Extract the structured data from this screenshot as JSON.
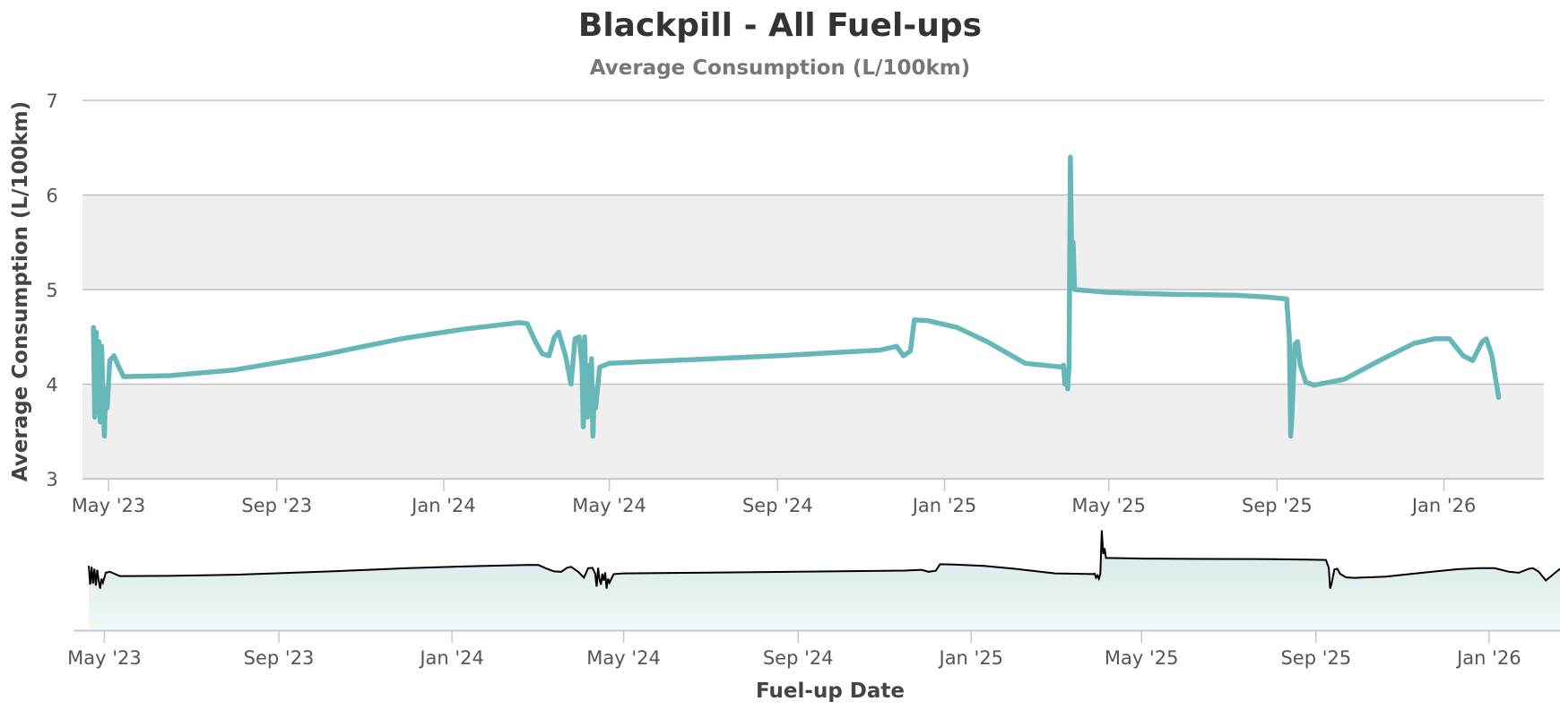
{
  "chart_data": {
    "type": "line",
    "title": "Blackpill - All Fuel-ups",
    "subtitle": "Average Consumption (L/100km)",
    "ylabel": "Average Consumption (L/100km)",
    "xlabel": "Fuel-up Date",
    "ylim": [
      3,
      7
    ],
    "yticks": [
      3,
      4,
      5,
      6,
      7
    ],
    "xlim": [
      "2023-04-12",
      "2026-03-15"
    ],
    "xticks": [
      {
        "date": "2023-05-01",
        "label": "May '23"
      },
      {
        "date": "2023-09-01",
        "label": "Sep '23"
      },
      {
        "date": "2024-01-01",
        "label": "Jan '24"
      },
      {
        "date": "2024-05-01",
        "label": "May '24"
      },
      {
        "date": "2024-09-01",
        "label": "Sep '24"
      },
      {
        "date": "2025-01-01",
        "label": "Jan '25"
      },
      {
        "date": "2025-05-01",
        "label": "May '25"
      },
      {
        "date": "2025-09-01",
        "label": "Sep '25"
      },
      {
        "date": "2026-01-01",
        "label": "Jan '26"
      }
    ],
    "plot_bands": [
      {
        "from": 3,
        "to": 4
      },
      {
        "from": 5,
        "to": 6
      }
    ],
    "grid": true,
    "legend": false,
    "colors": {
      "line": "#66b8b8",
      "band": "#efefef",
      "grid": "#c0c0c0",
      "navigator_line": "#000000",
      "navigator_fill_top": "#d3e6e6",
      "navigator_fill_bottom": "#f2f8f8",
      "navigator_axis": "#c0c8d8"
    },
    "series": [
      {
        "points": [
          [
            "2023-04-20",
            4.6
          ],
          [
            "2023-04-21",
            3.65
          ],
          [
            "2023-04-22",
            4.55
          ],
          [
            "2023-04-23",
            3.7
          ],
          [
            "2023-04-24",
            4.45
          ],
          [
            "2023-04-25",
            3.6
          ],
          [
            "2023-04-26",
            4.4
          ],
          [
            "2023-04-27",
            3.85
          ],
          [
            "2023-04-28",
            3.45
          ],
          [
            "2023-04-29",
            3.95
          ],
          [
            "2023-04-30",
            3.75
          ],
          [
            "2023-05-02",
            4.25
          ],
          [
            "2023-05-05",
            4.3
          ],
          [
            "2023-05-08",
            4.2
          ],
          [
            "2023-05-12",
            4.08
          ],
          [
            "2023-06-15",
            4.09
          ],
          [
            "2023-08-01",
            4.15
          ],
          [
            "2023-10-01",
            4.3
          ],
          [
            "2023-12-01",
            4.48
          ],
          [
            "2024-01-15",
            4.58
          ],
          [
            "2024-02-25",
            4.65
          ],
          [
            "2024-03-02",
            4.64
          ],
          [
            "2024-03-08",
            4.45
          ],
          [
            "2024-03-13",
            4.32
          ],
          [
            "2024-03-18",
            4.3
          ],
          [
            "2024-03-22",
            4.5
          ],
          [
            "2024-03-25",
            4.55
          ],
          [
            "2024-03-30",
            4.3
          ],
          [
            "2024-04-03",
            4.0
          ],
          [
            "2024-04-06",
            4.48
          ],
          [
            "2024-04-09",
            4.5
          ],
          [
            "2024-04-11",
            4.2
          ],
          [
            "2024-04-12",
            3.55
          ],
          [
            "2024-04-13",
            4.5
          ],
          [
            "2024-04-14",
            3.9
          ],
          [
            "2024-04-15",
            3.65
          ],
          [
            "2024-04-16",
            4.2
          ],
          [
            "2024-04-17",
            3.85
          ],
          [
            "2024-04-18",
            4.27
          ],
          [
            "2024-04-19",
            3.45
          ],
          [
            "2024-04-20",
            3.95
          ],
          [
            "2024-04-21",
            3.75
          ],
          [
            "2024-04-24",
            4.18
          ],
          [
            "2024-05-01",
            4.22
          ],
          [
            "2024-07-01",
            4.26
          ],
          [
            "2024-09-01",
            4.3
          ],
          [
            "2024-11-15",
            4.36
          ],
          [
            "2024-11-27",
            4.4
          ],
          [
            "2024-12-02",
            4.3
          ],
          [
            "2024-12-07",
            4.35
          ],
          [
            "2024-12-10",
            4.68
          ],
          [
            "2024-12-20",
            4.67
          ],
          [
            "2025-01-10",
            4.6
          ],
          [
            "2025-02-01",
            4.45
          ],
          [
            "2025-03-01",
            4.22
          ],
          [
            "2025-03-28",
            4.18
          ],
          [
            "2025-03-29",
            4.2
          ],
          [
            "2025-03-30",
            4.0
          ],
          [
            "2025-03-31",
            4.12
          ],
          [
            "2025-04-01",
            3.95
          ],
          [
            "2025-04-02",
            4.2
          ],
          [
            "2025-04-03",
            6.4
          ],
          [
            "2025-04-04",
            5.2
          ],
          [
            "2025-04-05",
            5.5
          ],
          [
            "2025-04-06",
            5.0
          ],
          [
            "2025-05-01",
            4.97
          ],
          [
            "2025-06-15",
            4.95
          ],
          [
            "2025-08-01",
            4.94
          ],
          [
            "2025-08-25",
            4.92
          ],
          [
            "2025-09-08",
            4.9
          ],
          [
            "2025-09-10",
            4.5
          ],
          [
            "2025-09-11",
            3.45
          ],
          [
            "2025-09-12",
            3.7
          ],
          [
            "2025-09-14",
            4.42
          ],
          [
            "2025-09-16",
            4.45
          ],
          [
            "2025-09-18",
            4.2
          ],
          [
            "2025-09-22",
            4.02
          ],
          [
            "2025-09-28",
            3.99
          ],
          [
            "2025-10-20",
            4.05
          ],
          [
            "2025-11-15",
            4.25
          ],
          [
            "2025-12-10",
            4.43
          ],
          [
            "2025-12-25",
            4.48
          ],
          [
            "2026-01-05",
            4.48
          ],
          [
            "2026-01-15",
            4.3
          ],
          [
            "2026-01-22",
            4.25
          ],
          [
            "2026-01-29",
            4.45
          ],
          [
            "2026-02-01",
            4.48
          ],
          [
            "2026-02-05",
            4.3
          ],
          [
            "2026-02-10",
            3.86
          ]
        ]
      }
    ]
  }
}
